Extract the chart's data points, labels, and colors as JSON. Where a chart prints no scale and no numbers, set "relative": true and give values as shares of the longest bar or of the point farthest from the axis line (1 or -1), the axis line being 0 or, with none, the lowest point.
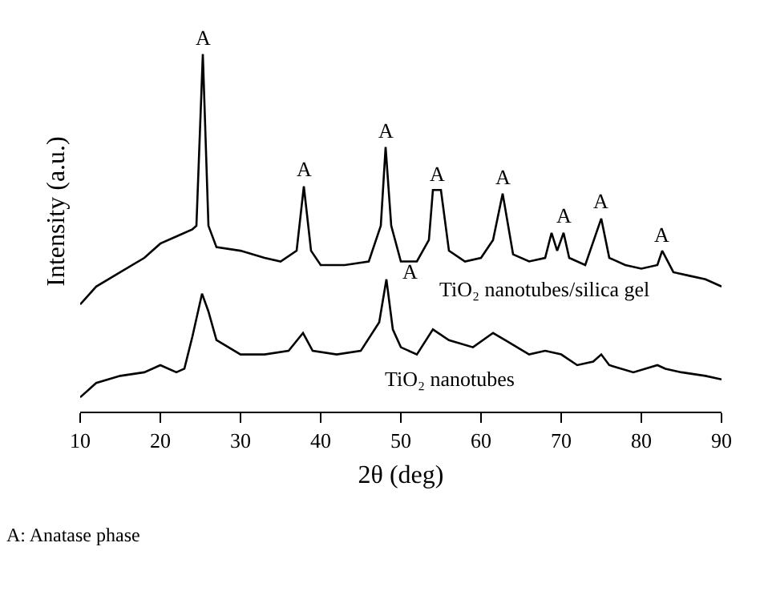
{
  "chart_data": {
    "type": "line",
    "relative": true,
    "xlabel": "2$_{}$θ (deg)",
    "ylabel": "Intensity (a.u.)",
    "xlim": [
      10,
      90
    ],
    "xticks": [
      10,
      20,
      30,
      40,
      50,
      60,
      70,
      80,
      90
    ],
    "legend": false,
    "marker": "none",
    "line_style": "solid",
    "series": [
      {
        "name": "TiO₂ nanotubes/silica gel",
        "color": "#000000",
        "x": [
          10,
          12,
          15,
          18,
          20,
          22,
          24,
          24.5,
          25.3,
          26,
          27,
          30,
          33,
          35,
          37,
          37.9,
          38.8,
          40,
          43,
          46,
          47.5,
          48.1,
          48.8,
          50,
          52,
          53.5,
          54,
          55,
          56,
          58,
          60,
          61.5,
          62.7,
          64,
          66,
          68,
          68.8,
          69.5,
          70.3,
          71,
          73,
          75,
          76,
          78,
          80,
          82,
          82.6,
          84,
          86,
          88,
          90
        ],
        "values": [
          0.3,
          0.35,
          0.39,
          0.43,
          0.47,
          0.49,
          0.51,
          0.52,
          1.0,
          0.52,
          0.46,
          0.45,
          0.43,
          0.42,
          0.45,
          0.63,
          0.45,
          0.41,
          0.41,
          0.42,
          0.52,
          0.74,
          0.52,
          0.42,
          0.42,
          0.48,
          0.62,
          0.62,
          0.45,
          0.42,
          0.43,
          0.48,
          0.61,
          0.44,
          0.42,
          0.43,
          0.5,
          0.45,
          0.5,
          0.43,
          0.41,
          0.54,
          0.43,
          0.41,
          0.4,
          0.41,
          0.45,
          0.39,
          0.38,
          0.37,
          0.35
        ]
      },
      {
        "name": "TiO₂ nanotubes",
        "color": "#000000",
        "x": [
          10,
          12,
          15,
          18,
          20,
          22,
          23,
          24,
          25.2,
          26,
          27,
          30,
          33,
          36,
          37.8,
          39,
          42,
          45,
          47.3,
          48.2,
          49,
          50,
          52,
          54,
          56,
          59,
          61.5,
          63,
          66,
          68,
          70,
          72,
          74,
          75,
          76,
          79,
          82,
          83,
          85,
          88,
          90
        ],
        "values": [
          0.04,
          0.08,
          0.1,
          0.11,
          0.13,
          0.11,
          0.12,
          0.21,
          0.33,
          0.28,
          0.2,
          0.16,
          0.16,
          0.17,
          0.22,
          0.17,
          0.16,
          0.17,
          0.25,
          0.37,
          0.23,
          0.18,
          0.16,
          0.23,
          0.2,
          0.18,
          0.22,
          0.2,
          0.16,
          0.17,
          0.16,
          0.13,
          0.14,
          0.16,
          0.13,
          0.11,
          0.13,
          0.12,
          0.11,
          0.1,
          0.09
        ]
      }
    ],
    "annotations": [
      {
        "text": "A",
        "x": 25.3,
        "y": 1.0
      },
      {
        "text": "A",
        "x": 37.9,
        "y": 0.63
      },
      {
        "text": "A",
        "x": 48.1,
        "y": 0.74
      },
      {
        "text": "A",
        "x": 54.5,
        "y": 0.62
      },
      {
        "text": "A",
        "x": 62.7,
        "y": 0.61
      },
      {
        "text": "A",
        "x": 70.3,
        "y": 0.5
      },
      {
        "text": "A",
        "x": 75,
        "y": 0.54
      },
      {
        "text": "A",
        "x": 82.6,
        "y": 0.45
      },
      {
        "text": "A",
        "x": 48.2,
        "y": 0.37
      },
      "A: Anatase phase"
    ]
  }
}
